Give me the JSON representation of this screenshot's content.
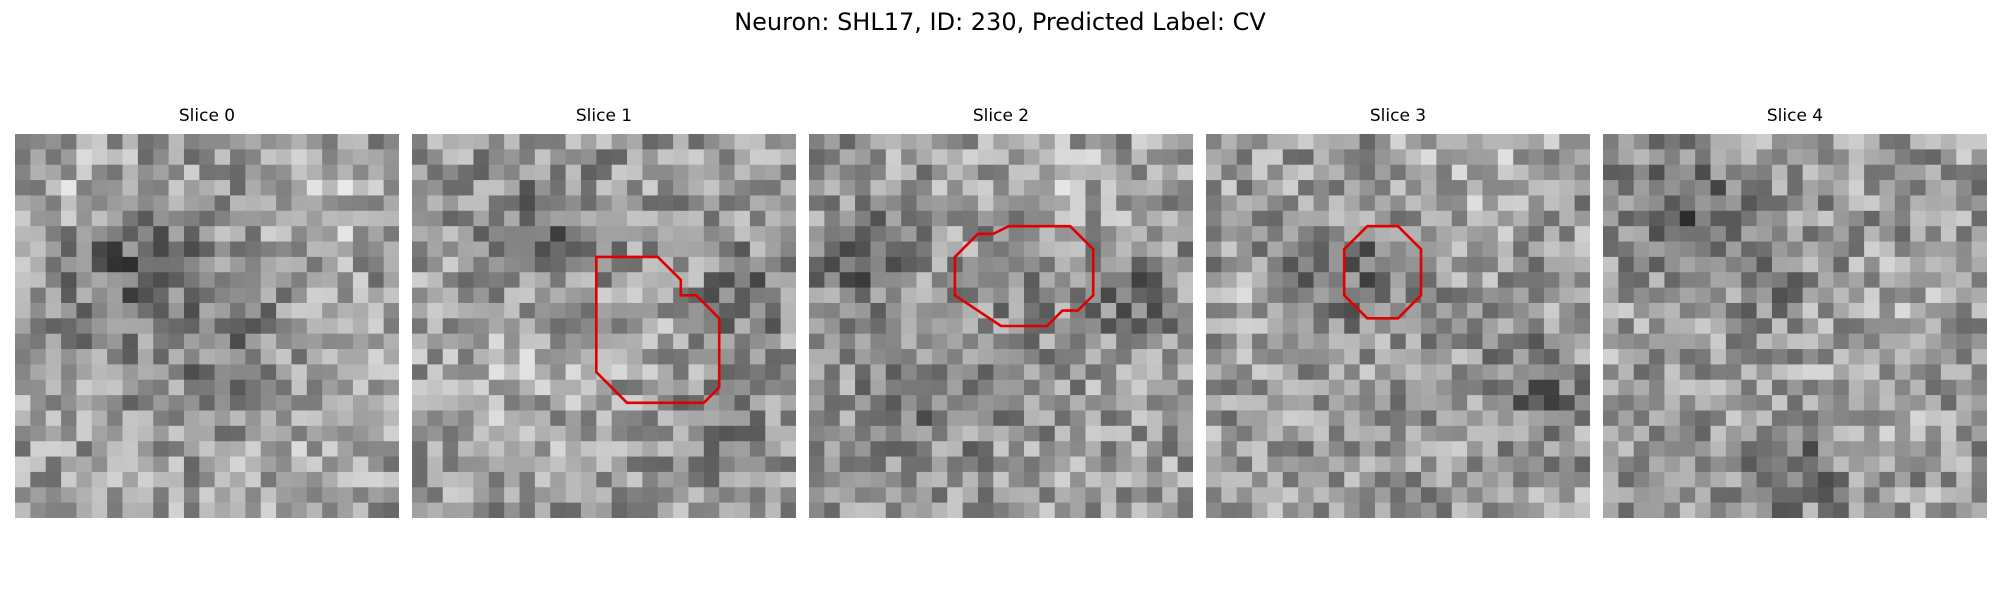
{
  "figure": {
    "title": "Neuron: SHL17, ID: 230, Predicted Label: CV"
  },
  "panels": [
    {
      "title": "Slice 0",
      "has_contour": false,
      "seed": 11
    },
    {
      "title": "Slice 1",
      "has_contour": true,
      "seed": 29,
      "contour": [
        [
          12,
          8
        ],
        [
          16,
          8
        ],
        [
          17.5,
          9.5
        ],
        [
          17.5,
          10.5
        ],
        [
          18.5,
          10.5
        ],
        [
          20,
          12
        ],
        [
          20,
          16.5
        ],
        [
          19,
          17.5
        ],
        [
          14,
          17.5
        ],
        [
          12,
          15.5
        ],
        [
          12,
          9.5
        ]
      ]
    },
    {
      "title": "Slice 2",
      "has_contour": true,
      "seed": 47,
      "contour": [
        [
          13,
          6
        ],
        [
          17,
          6
        ],
        [
          18.5,
          7.5
        ],
        [
          18.5,
          10.5
        ],
        [
          17.5,
          11.5
        ],
        [
          16.5,
          11.5
        ],
        [
          15.5,
          12.5
        ],
        [
          12.5,
          12.5
        ],
        [
          9.5,
          10.5
        ],
        [
          9.5,
          8
        ],
        [
          11,
          6.5
        ],
        [
          12,
          6.5
        ]
      ]
    },
    {
      "title": "Slice 3",
      "has_contour": true,
      "seed": 71,
      "contour": [
        [
          10.5,
          6
        ],
        [
          12.5,
          6
        ],
        [
          14,
          7.5
        ],
        [
          14,
          10.5
        ],
        [
          12.5,
          12
        ],
        [
          10.5,
          12
        ],
        [
          9,
          10.5
        ],
        [
          9,
          7.5
        ]
      ]
    },
    {
      "title": "Slice 4",
      "has_contour": false,
      "seed": 93
    }
  ],
  "style": {
    "contour_color": "#e00000"
  }
}
